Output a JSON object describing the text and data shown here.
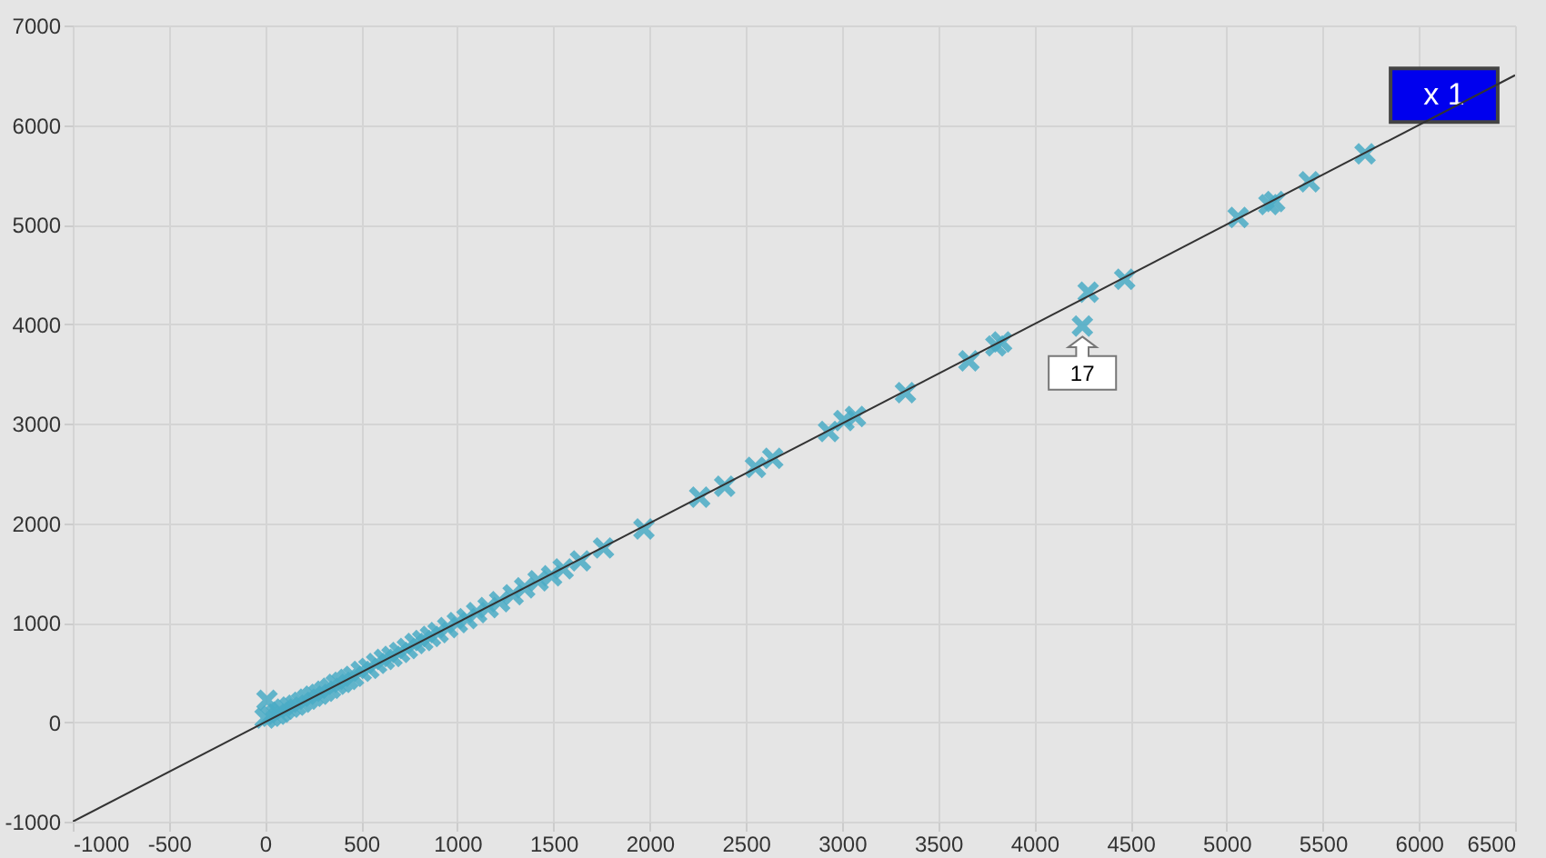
{
  "chart_data": {
    "type": "scatter",
    "xlim": [
      -1000,
      6500
    ],
    "ylim": [
      -1000,
      7000
    ],
    "xticks": [
      -1000,
      -500,
      0,
      500,
      1000,
      1500,
      2000,
      2500,
      3000,
      3500,
      4000,
      4500,
      5000,
      5500,
      6000,
      6500
    ],
    "yticks": [
      -1000,
      0,
      1000,
      2000,
      3000,
      4000,
      5000,
      6000,
      7000
    ],
    "grid": true,
    "marker": "cross",
    "series": [
      {
        "color": "#4bacc6",
        "x": [
          0,
          10,
          30,
          60,
          80,
          100,
          130,
          160,
          190,
          220,
          250,
          280,
          310,
          340,
          370,
          400,
          430,
          460,
          500,
          540,
          580,
          620,
          660,
          700,
          740,
          780,
          820,
          860,
          900,
          950,
          1000,
          1050,
          1100,
          1160,
          1220,
          1290,
          1350,
          1420,
          1490,
          1550,
          1640,
          1760,
          1970,
          2260,
          2390,
          2550,
          2640,
          2930,
          3010,
          3070,
          3330,
          3660,
          3800,
          3830,
          4250,
          4280,
          4470,
          5060,
          5220,
          5250,
          5430,
          5720
        ],
        "values": [
          40,
          220,
          60,
          80,
          100,
          130,
          150,
          170,
          200,
          230,
          260,
          280,
          310,
          340,
          380,
          400,
          430,
          460,
          510,
          540,
          590,
          630,
          660,
          700,
          740,
          790,
          820,
          860,
          900,
          950,
          1000,
          1040,
          1100,
          1150,
          1210,
          1280,
          1350,
          1420,
          1470,
          1540,
          1620,
          1750,
          1940,
          2260,
          2370,
          2560,
          2650,
          2920,
          3030,
          3070,
          3310,
          3630,
          3780,
          3820,
          3980,
          4320,
          4450,
          5070,
          5200,
          5230,
          5430,
          5710
        ]
      },
      {
        "type": "line",
        "name": "x 1",
        "color": "#333333",
        "marker": "none",
        "x": [
          -1000,
          6500
        ],
        "values": [
          -1000,
          6500
        ]
      }
    ],
    "annotations": [
      {
        "text": "17",
        "x": 4250,
        "y": 3980
      }
    ]
  }
}
